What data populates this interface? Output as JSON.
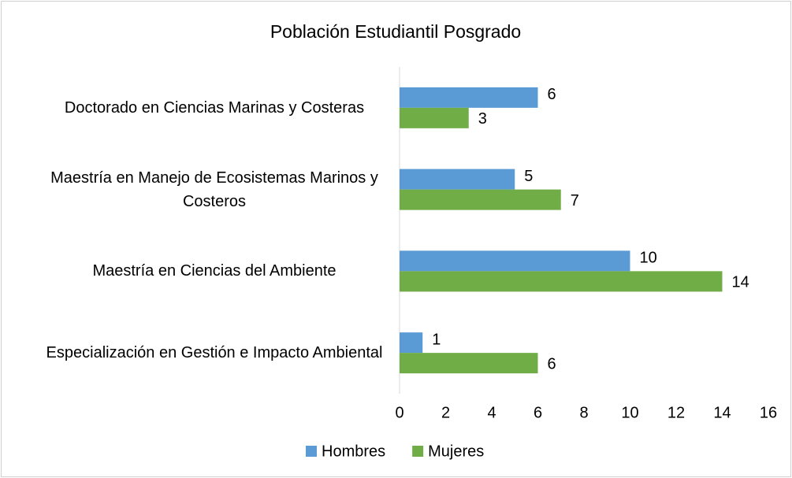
{
  "chart_data": {
    "type": "bar",
    "orientation": "horizontal",
    "title": "Población Estudiantil Posgrado",
    "categories": [
      "Doctorado en Ciencias Marinas y Costeras",
      "Maestría en Manejo de Ecosistemas Marinos y Costeros",
      "Maestría en Ciencias del Ambiente",
      "Especialización en Gestión e Impacto Ambiental"
    ],
    "series": [
      {
        "name": "Hombres",
        "color": "#5b9bd5",
        "values": [
          6,
          5,
          10,
          1
        ]
      },
      {
        "name": "Mujeres",
        "color": "#70ad47",
        "values": [
          3,
          7,
          14,
          6
        ]
      }
    ],
    "xlim": [
      0,
      16
    ],
    "xticks": [
      0,
      2,
      4,
      6,
      8,
      10,
      12,
      14,
      16
    ],
    "grid": false,
    "legend": "bottom"
  }
}
